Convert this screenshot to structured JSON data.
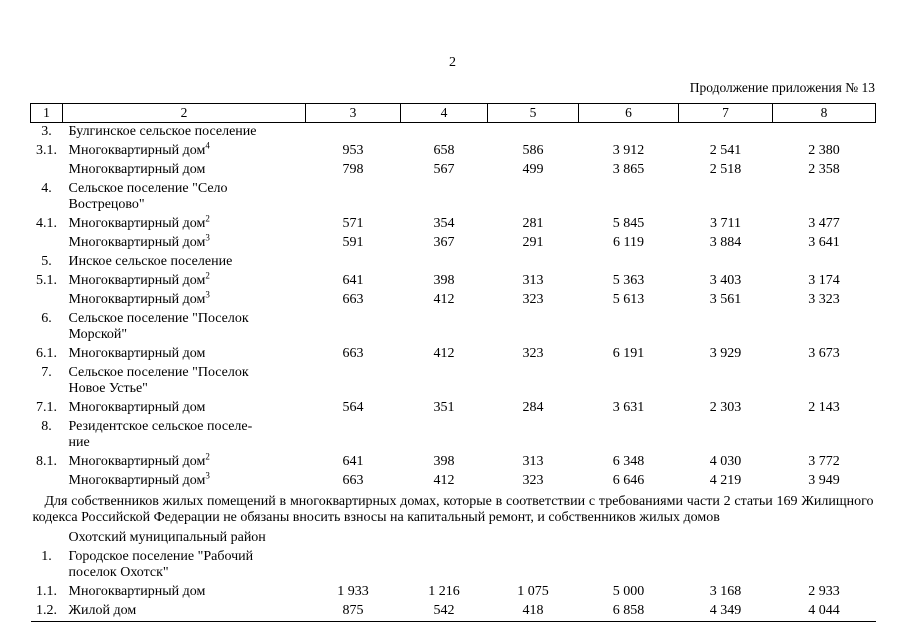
{
  "page": {
    "number": "2",
    "continuation": "Продолжение приложения № 13"
  },
  "table": {
    "headers": [
      "1",
      "2",
      "3",
      "4",
      "5",
      "6",
      "7",
      "8"
    ],
    "rows": [
      {
        "type": "item",
        "num": "3.",
        "name": "Булгинское сельское поселение",
        "sup": "",
        "values": [
          "",
          "",
          "",
          "",
          "",
          ""
        ]
      },
      {
        "type": "item",
        "num": "3.1.",
        "name": "Многоквартирный дом",
        "sup": "4",
        "values": [
          "953",
          "658",
          "586",
          "3 912",
          "2 541",
          "2 380"
        ]
      },
      {
        "type": "item",
        "num": "",
        "name": "Многоквартирный дом",
        "sup": "",
        "values": [
          "798",
          "567",
          "499",
          "3 865",
          "2 518",
          "2 358"
        ]
      },
      {
        "type": "item",
        "num": "4.",
        "name": "Сельское поселение \"Село\nВострецово\"",
        "sup": "",
        "values": [
          "",
          "",
          "",
          "",
          "",
          ""
        ]
      },
      {
        "type": "item",
        "num": "4.1.",
        "name": "Многоквартирный дом",
        "sup": "2",
        "values": [
          "571",
          "354",
          "281",
          "5 845",
          "3 711",
          "3 477"
        ]
      },
      {
        "type": "item",
        "num": "",
        "name": "Многоквартирный дом",
        "sup": "3",
        "values": [
          "591",
          "367",
          "291",
          "6 119",
          "3 884",
          "3 641"
        ]
      },
      {
        "type": "item",
        "num": "5.",
        "name": "Инское сельское поселение",
        "sup": "",
        "values": [
          "",
          "",
          "",
          "",
          "",
          ""
        ]
      },
      {
        "type": "item",
        "num": "5.1.",
        "name": "Многоквартирный дом",
        "sup": "2",
        "values": [
          "641",
          "398",
          "313",
          "5 363",
          "3 403",
          "3 174"
        ]
      },
      {
        "type": "item",
        "num": "",
        "name": "Многоквартирный дом",
        "sup": "3",
        "values": [
          "663",
          "412",
          "323",
          "5 613",
          "3 561",
          "3 323"
        ]
      },
      {
        "type": "item",
        "num": "6.",
        "name": "Сельское поселение \"Поселок\nМорской\"",
        "sup": "",
        "values": [
          "",
          "",
          "",
          "",
          "",
          ""
        ]
      },
      {
        "type": "item",
        "num": "6.1.",
        "name": "Многоквартирный дом",
        "sup": "",
        "values": [
          "663",
          "412",
          "323",
          "6 191",
          "3 929",
          "3 673"
        ]
      },
      {
        "type": "item",
        "num": "7.",
        "name": "Сельское поселение \"Поселок\nНовое Устье\"",
        "sup": "",
        "values": [
          "",
          "",
          "",
          "",
          "",
          ""
        ]
      },
      {
        "type": "item",
        "num": "7.1.",
        "name": "Многоквартирный дом",
        "sup": "",
        "values": [
          "564",
          "351",
          "284",
          "3 631",
          "2 303",
          "2 143"
        ]
      },
      {
        "type": "item",
        "num": "8.",
        "name": "Резидентское сельское поселе-\nние",
        "sup": "",
        "values": [
          "",
          "",
          "",
          "",
          "",
          ""
        ]
      },
      {
        "type": "item",
        "num": "8.1.",
        "name": "Многоквартирный дом",
        "sup": "2",
        "values": [
          "641",
          "398",
          "313",
          "6 348",
          "4 030",
          "3 772"
        ]
      },
      {
        "type": "item",
        "num": "",
        "name": "Многоквартирный дом",
        "sup": "3",
        "values": [
          "663",
          "412",
          "323",
          "6 646",
          "4 219",
          "3 949"
        ]
      },
      {
        "type": "note",
        "text": "Для собственников жилых помещений в многоквартирных домах, которые в соответствии с требованиями части 2 статьи 169 Жилищного кодекса Российской Федерации не обязаны вносить взносы на капитальный ремонт, и собственников жилых домов"
      },
      {
        "type": "item",
        "num": "",
        "name": "Охотский муниципальный район",
        "sup": "",
        "values": [
          "",
          "",
          "",
          "",
          "",
          ""
        ]
      },
      {
        "type": "item",
        "num": "1.",
        "name": "Городское поселение \"Рабочий\nпоселок Охотск\"",
        "sup": "",
        "values": [
          "",
          "",
          "",
          "",
          "",
          ""
        ]
      },
      {
        "type": "item",
        "num": "1.1.",
        "name": "Многоквартирный дом",
        "sup": "",
        "values": [
          "1 933",
          "1 216",
          "1 075",
          "5 000",
          "3 168",
          "2 933"
        ]
      },
      {
        "type": "item",
        "num": "1.2.",
        "name": "Жилой дом",
        "sup": "",
        "values": [
          "875",
          "542",
          "418",
          "6 858",
          "4 349",
          "4 044"
        ]
      }
    ]
  }
}
